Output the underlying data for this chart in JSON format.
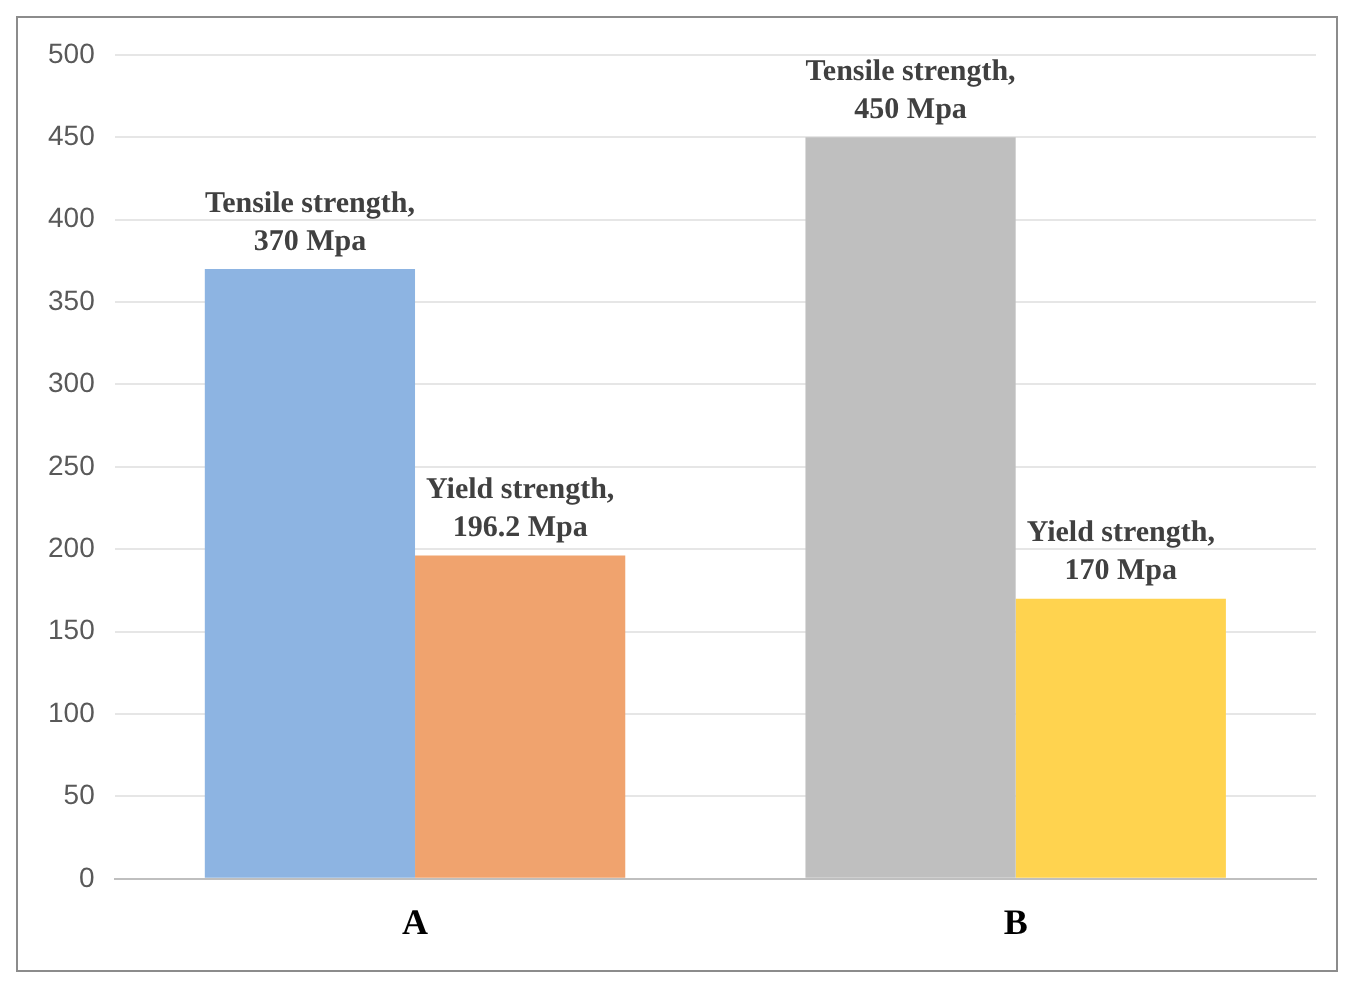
{
  "chart_data": {
    "type": "bar",
    "categories": [
      "A",
      "B"
    ],
    "series": [
      {
        "colors": [
          "#8db4e2",
          "#bfbfbf"
        ],
        "values": [
          370,
          450
        ],
        "value_labels": [
          "Tensile strength, 370 Mpa",
          "Tensile strength, 450 Mpa"
        ]
      },
      {
        "colors": [
          "#f0a36e",
          "#ffd34f"
        ],
        "values": [
          196.2,
          170
        ],
        "value_labels": [
          "Yield strength, 196.2 Mpa",
          "Yield strength, 170 Mpa"
        ]
      }
    ],
    "ylim": [
      0,
      500
    ],
    "yticks": [
      0,
      50,
      100,
      150,
      200,
      250,
      300,
      350,
      400,
      450,
      500
    ],
    "grid": "y",
    "legend": false
  }
}
